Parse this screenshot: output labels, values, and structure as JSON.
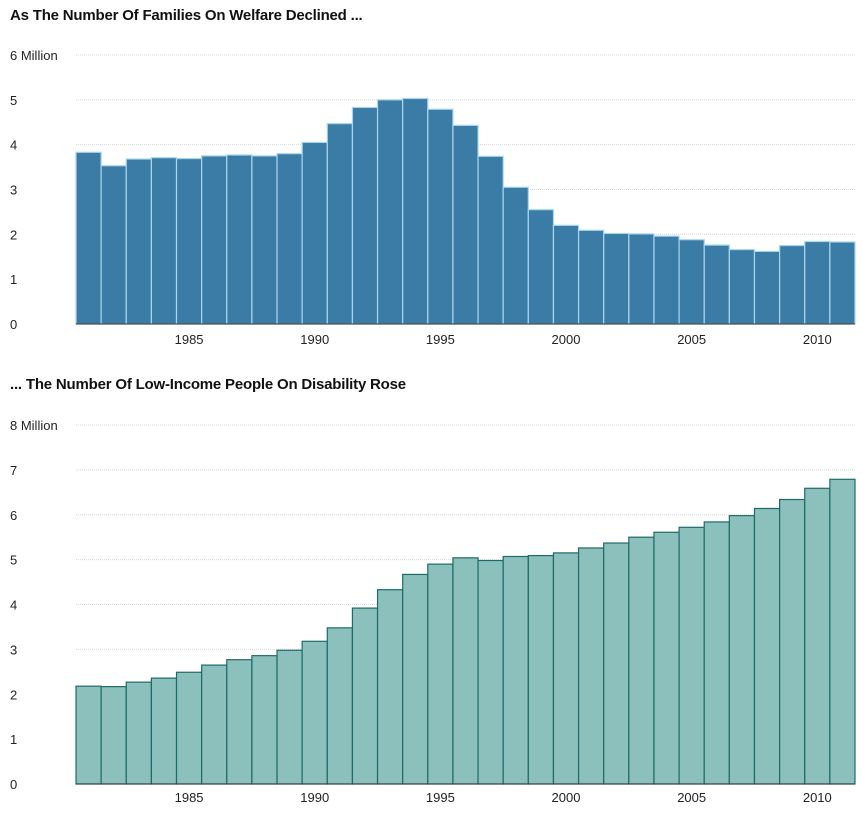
{
  "chart_data": [
    {
      "type": "bar",
      "title": "As The Number Of Families On Welfare Declined ...",
      "unit_label": "Million",
      "x": [
        1981,
        1982,
        1983,
        1984,
        1985,
        1986,
        1987,
        1988,
        1989,
        1990,
        1991,
        1992,
        1993,
        1994,
        1995,
        1996,
        1997,
        1998,
        1999,
        2000,
        2001,
        2002,
        2003,
        2004,
        2005,
        2006,
        2007,
        2008,
        2009,
        2010,
        2011
      ],
      "values": [
        3.83,
        3.53,
        3.68,
        3.71,
        3.69,
        3.75,
        3.77,
        3.75,
        3.8,
        4.05,
        4.47,
        4.83,
        5.0,
        5.03,
        4.79,
        4.43,
        3.74,
        3.05,
        2.55,
        2.2,
        2.09,
        2.02,
        2.01,
        1.96,
        1.88,
        1.76,
        1.66,
        1.62,
        1.75,
        1.84,
        1.83
      ],
      "ylim": [
        0,
        6
      ],
      "yticks": [
        0,
        1,
        2,
        3,
        4,
        5,
        6
      ],
      "ytick_labels": [
        "0",
        "1",
        "2",
        "3",
        "4",
        "5",
        "6 Million"
      ],
      "xticks": [
        1985,
        1990,
        1995,
        2000,
        2005,
        2010
      ],
      "xtick_labels": [
        "1985",
        "1990",
        "1995",
        "2000",
        "2005",
        "2010"
      ],
      "grid": true,
      "bar_color": "#3a7ca5",
      "bar_stroke": "#a9d6ef"
    },
    {
      "type": "bar",
      "title": "... The Number Of Low-Income People On Disability Rose",
      "unit_label": "Million",
      "x": [
        1981,
        1982,
        1983,
        1984,
        1985,
        1986,
        1987,
        1988,
        1989,
        1990,
        1991,
        1992,
        1993,
        1994,
        1995,
        1996,
        1997,
        1998,
        1999,
        2000,
        2001,
        2002,
        2003,
        2004,
        2005,
        2006,
        2007,
        2008,
        2009,
        2010,
        2011
      ],
      "values": [
        2.18,
        2.17,
        2.27,
        2.36,
        2.49,
        2.65,
        2.77,
        2.86,
        2.98,
        3.18,
        3.48,
        3.92,
        4.33,
        4.67,
        4.9,
        5.04,
        4.98,
        5.07,
        5.09,
        5.15,
        5.26,
        5.37,
        5.5,
        5.61,
        5.72,
        5.84,
        5.98,
        6.14,
        6.34,
        6.59,
        6.79
      ],
      "ylim": [
        0,
        8
      ],
      "yticks": [
        0,
        1,
        2,
        3,
        4,
        5,
        6,
        7,
        8
      ],
      "ytick_labels": [
        "0",
        "1",
        "2",
        "3",
        "4",
        "5",
        "6",
        "7",
        "8 Million"
      ],
      "xticks": [
        1985,
        1990,
        1995,
        2000,
        2005,
        2010
      ],
      "xtick_labels": [
        "1985",
        "1990",
        "1995",
        "2000",
        "2005",
        "2010"
      ],
      "grid": true,
      "bar_color": "#8cc0bd",
      "bar_stroke": "#1d6b68"
    }
  ]
}
